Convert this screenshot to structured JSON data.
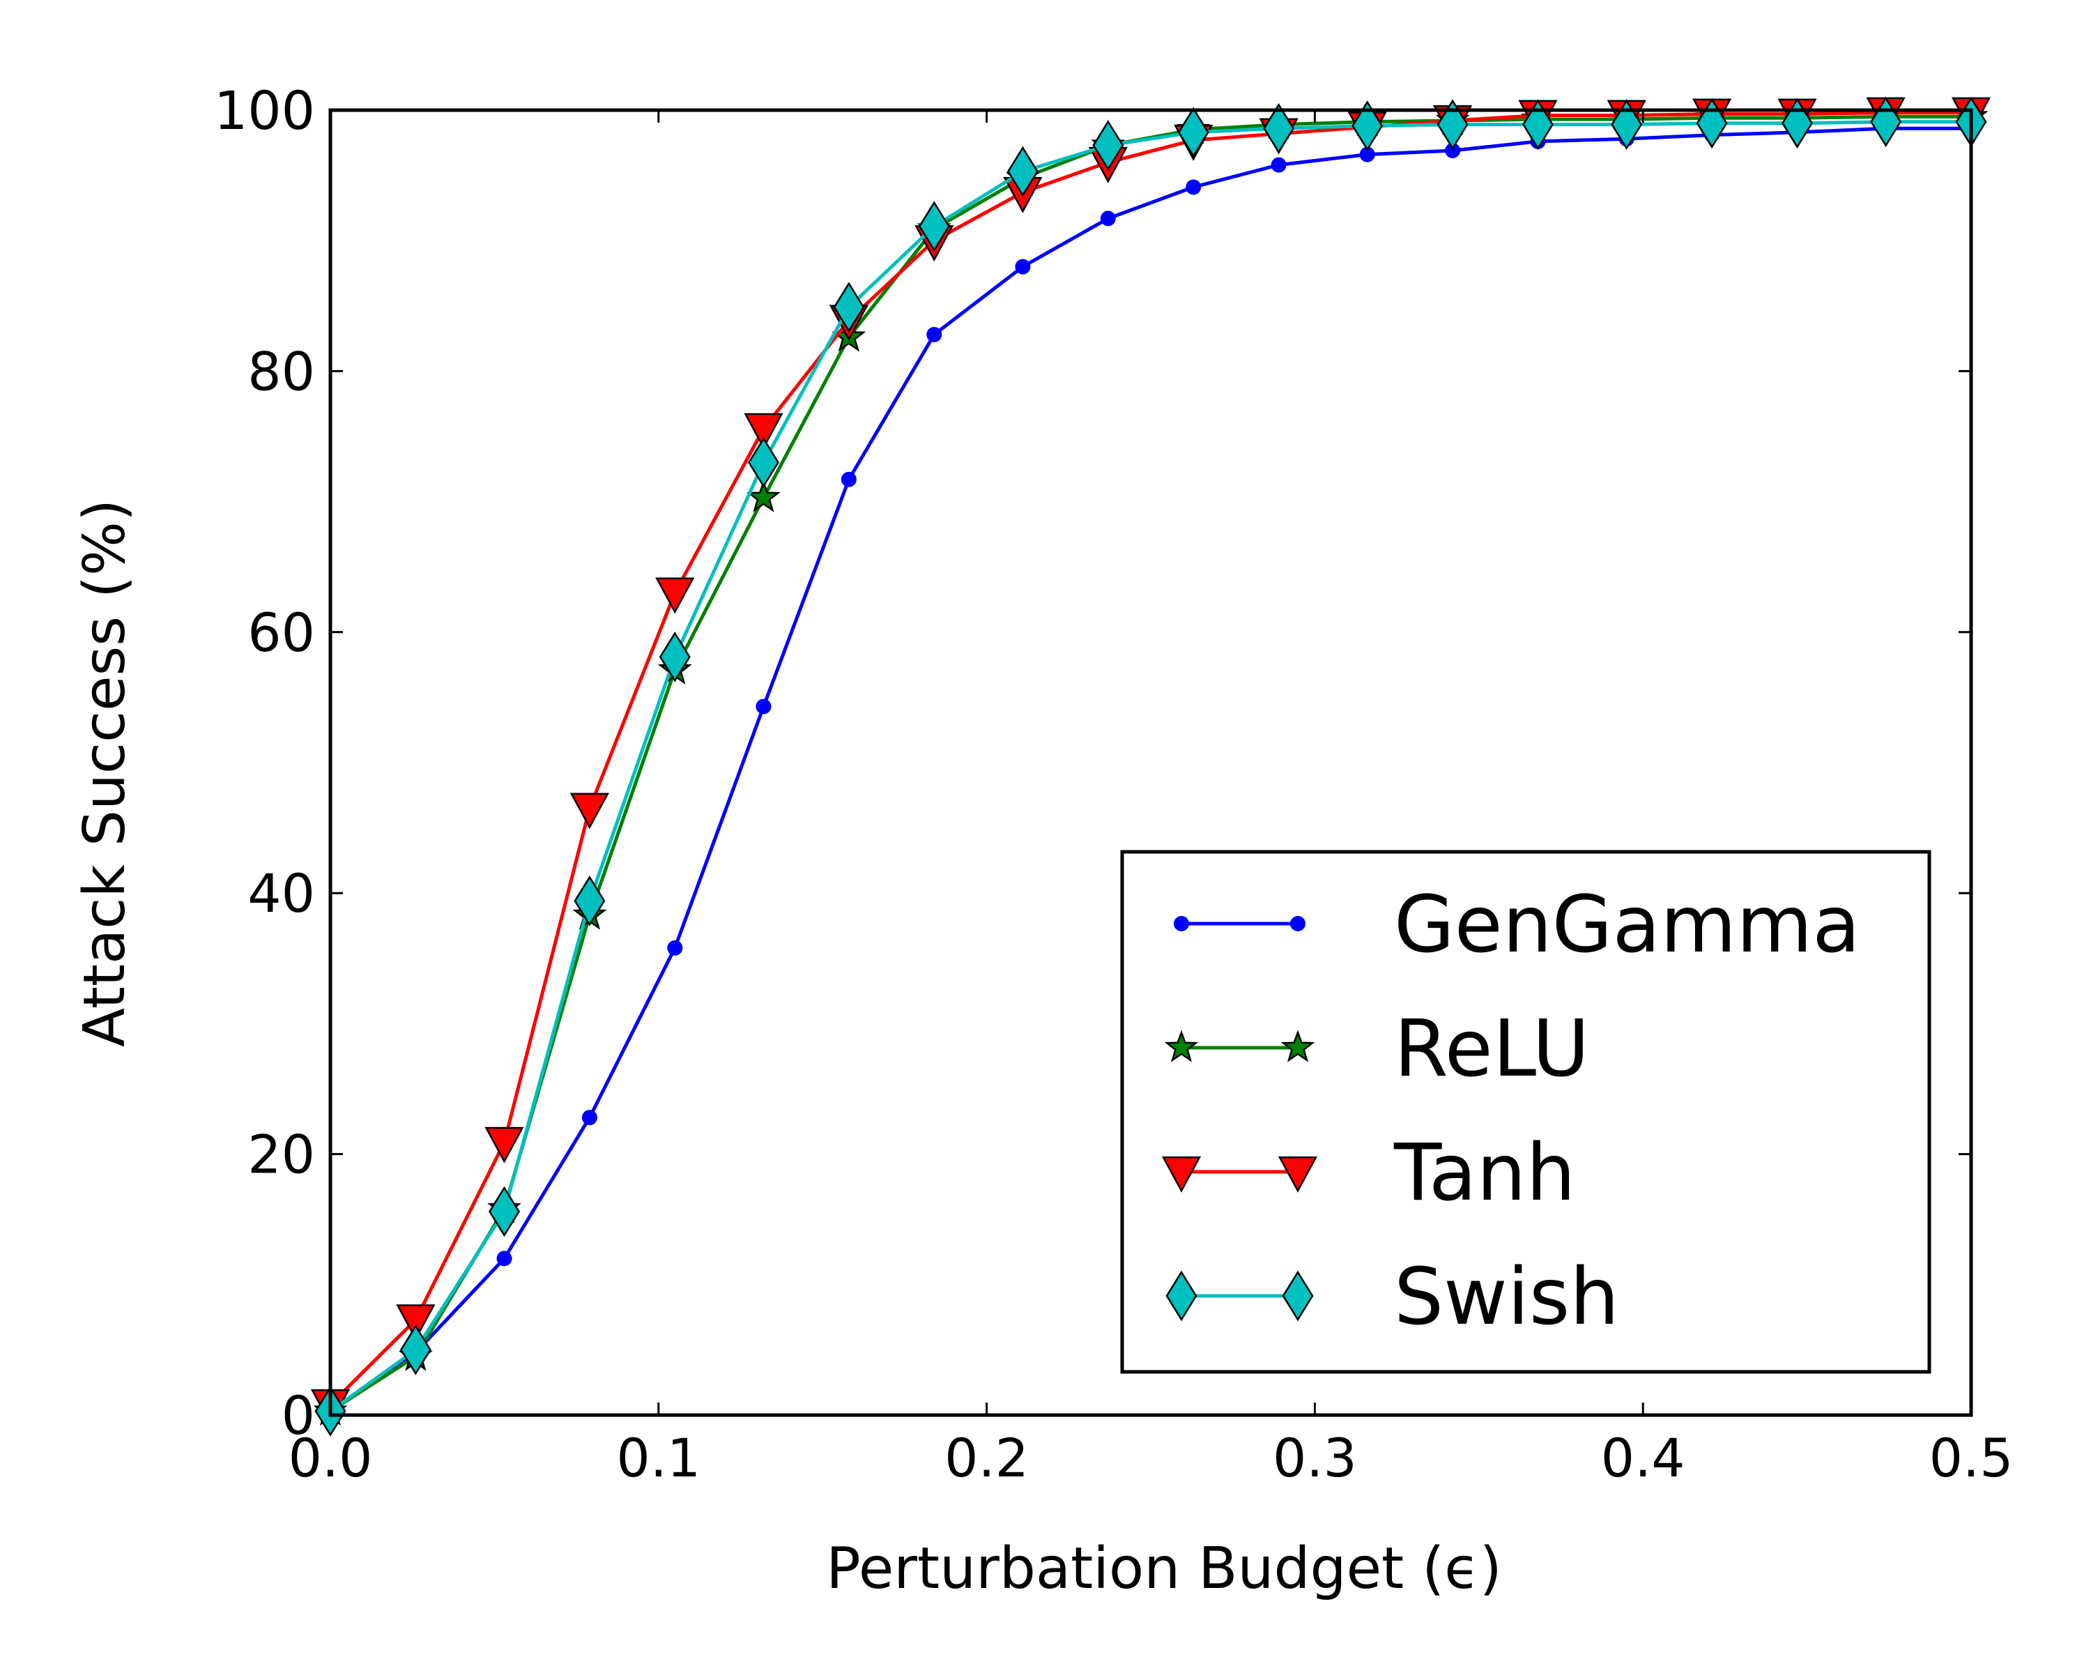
{
  "chart_data": {
    "type": "line",
    "title": "",
    "xlabel": "Perturbation Budget (ϵ)",
    "ylabel": "Attack Success (%)",
    "xlim": [
      0.0,
      0.5
    ],
    "ylim": [
      0,
      100
    ],
    "x_ticks": [
      "0.0",
      "0.1",
      "0.2",
      "0.3",
      "0.4",
      "0.5"
    ],
    "y_ticks": [
      "0",
      "20",
      "40",
      "60",
      "80",
      "100"
    ],
    "grid": false,
    "legend_position": "lower-right",
    "x": [
      0.0,
      0.026,
      0.053,
      0.079,
      0.105,
      0.132,
      0.158,
      0.184,
      0.211,
      0.237,
      0.263,
      0.289,
      0.316,
      0.342,
      0.368,
      0.395,
      0.421,
      0.447,
      0.474,
      0.5
    ],
    "series": [
      {
        "name": "GenGamma",
        "color": "#0000ff",
        "marker": "circle",
        "values": [
          0.3,
          4.8,
          12.0,
          22.8,
          35.8,
          54.3,
          71.7,
          82.8,
          88.0,
          91.7,
          94.1,
          95.8,
          96.6,
          96.9,
          97.6,
          97.8,
          98.1,
          98.3,
          98.6,
          98.6
        ]
      },
      {
        "name": "ReLU",
        "color": "#008000",
        "marker": "star",
        "values": [
          0.3,
          4.5,
          15.8,
          38.3,
          57.1,
          70.3,
          82.6,
          90.9,
          94.8,
          97.3,
          98.5,
          98.9,
          99.1,
          99.2,
          99.3,
          99.3,
          99.4,
          99.4,
          99.5,
          99.5
        ]
      },
      {
        "name": "Tanh",
        "color": "#ff0000",
        "marker": "triangle-down",
        "values": [
          0.8,
          7.3,
          20.9,
          46.5,
          63.0,
          75.6,
          83.9,
          90.0,
          93.7,
          96.0,
          97.7,
          98.2,
          98.7,
          99.2,
          99.6,
          99.6,
          99.7,
          99.7,
          99.8,
          99.8
        ]
      },
      {
        "name": "Swish",
        "color": "#00bfbf",
        "marker": "diamond",
        "values": [
          0.3,
          5.0,
          15.6,
          39.4,
          58.1,
          73.0,
          84.9,
          91.1,
          95.3,
          97.3,
          98.3,
          98.6,
          98.8,
          98.9,
          98.9,
          98.9,
          99.0,
          99.0,
          99.1,
          99.1
        ]
      }
    ]
  }
}
